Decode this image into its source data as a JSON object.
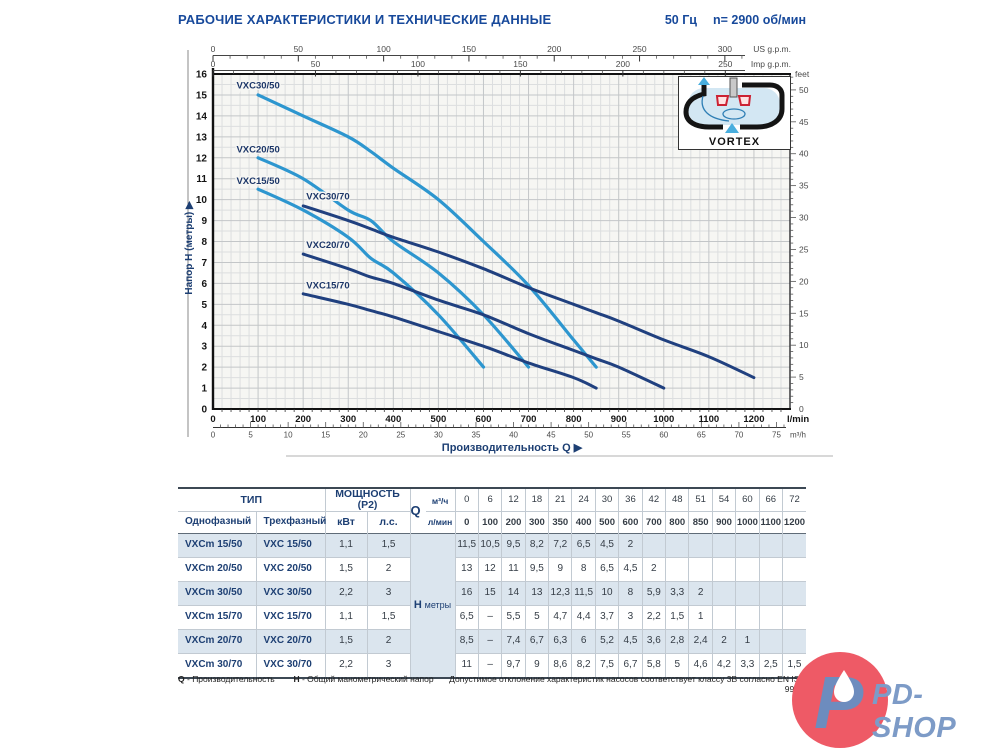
{
  "header": {
    "title": "РАБОЧИЕ ХАРАКТЕРИСТИКИ И ТЕХНИЧЕСКИЕ ДАННЫЕ",
    "freq": "50 Гц",
    "speed": "n= 2900 об/мин"
  },
  "chart": {
    "inset_label": "VORTEX",
    "colors": {
      "curve_light": "#2d96cf",
      "curve_dark": "#20407f",
      "grid_minor": "#dcdedf",
      "grid_major": "#c3c6c8",
      "plot_bg": "#f6f6f3",
      "label_navy": "#1c3668"
    }
  },
  "chart_data": {
    "type": "line",
    "x_axis": {
      "label": "Производительность Q  ▶",
      "primary_unit": "l/min",
      "secondary_unit": "m³/h",
      "lmin_ticks": [
        0,
        100,
        200,
        300,
        400,
        500,
        600,
        700,
        800,
        900,
        1000,
        1100,
        1200
      ],
      "m3h_ticks": [
        0,
        5,
        10,
        15,
        20,
        25,
        30,
        35,
        40,
        45,
        50,
        55,
        60,
        65,
        70,
        75
      ],
      "range_lmin": [
        0,
        1280
      ]
    },
    "y_axis": {
      "label": "Напор H (метры)  ▶",
      "m_ticks": [
        0,
        1,
        2,
        3,
        4,
        5,
        6,
        7,
        8,
        9,
        10,
        11,
        12,
        13,
        14,
        15,
        16
      ],
      "range_m": [
        0,
        16
      ]
    },
    "right_axis": {
      "unit": "feet",
      "ticks": [
        0,
        5,
        10,
        15,
        20,
        25,
        30,
        35,
        40,
        45,
        50
      ]
    },
    "top_axes": [
      {
        "unit": "US g.p.m.",
        "ticks": [
          0,
          50,
          100,
          150,
          200,
          250,
          300
        ],
        "lmin_per_unit": 3.785
      },
      {
        "unit": "Imp g.p.m.",
        "ticks": [
          0,
          50,
          100,
          150,
          200,
          250
        ],
        "lmin_per_unit": 4.546
      }
    ],
    "series": [
      {
        "name": "VXC15/50",
        "color": "light",
        "label_at": [
          52,
          10.75
        ],
        "points": [
          [
            100,
            10.5
          ],
          [
            200,
            9.5
          ],
          [
            300,
            8.2
          ],
          [
            350,
            7.2
          ],
          [
            400,
            6.5
          ],
          [
            500,
            4.5
          ],
          [
            600,
            2
          ]
        ]
      },
      {
        "name": "VXC20/50",
        "color": "light",
        "label_at": [
          52,
          12.25
        ],
        "points": [
          [
            100,
            12
          ],
          [
            200,
            11
          ],
          [
            300,
            9.5
          ],
          [
            350,
            9
          ],
          [
            400,
            8
          ],
          [
            500,
            6.5
          ],
          [
            600,
            4.5
          ],
          [
            700,
            2
          ]
        ]
      },
      {
        "name": "VXC30/50",
        "color": "light",
        "label_at": [
          52,
          15.3
        ],
        "points": [
          [
            100,
            15
          ],
          [
            200,
            14
          ],
          [
            300,
            13
          ],
          [
            350,
            12.3
          ],
          [
            400,
            11.5
          ],
          [
            500,
            10
          ],
          [
            600,
            8
          ],
          [
            700,
            5.9
          ],
          [
            800,
            3.3
          ],
          [
            850,
            2
          ]
        ]
      },
      {
        "name": "VXC15/70",
        "color": "dark",
        "label_at": [
          207,
          5.75
        ],
        "points": [
          [
            200,
            5.5
          ],
          [
            300,
            5
          ],
          [
            350,
            4.7
          ],
          [
            400,
            4.4
          ],
          [
            500,
            3.7
          ],
          [
            600,
            3
          ],
          [
            700,
            2.2
          ],
          [
            800,
            1.5
          ],
          [
            850,
            1
          ]
        ]
      },
      {
        "name": "VXC20/70",
        "color": "dark",
        "label_at": [
          207,
          7.7
        ],
        "points": [
          [
            200,
            7.4
          ],
          [
            300,
            6.7
          ],
          [
            350,
            6.3
          ],
          [
            400,
            6
          ],
          [
            500,
            5.2
          ],
          [
            600,
            4.5
          ],
          [
            700,
            3.6
          ],
          [
            800,
            2.8
          ],
          [
            850,
            2.4
          ],
          [
            900,
            2
          ],
          [
            1000,
            1
          ]
        ]
      },
      {
        "name": "VXC30/70",
        "color": "dark",
        "label_at": [
          207,
          10.0
        ],
        "points": [
          [
            200,
            9.7
          ],
          [
            300,
            9
          ],
          [
            350,
            8.6
          ],
          [
            400,
            8.2
          ],
          [
            500,
            7.5
          ],
          [
            600,
            6.7
          ],
          [
            700,
            5.8
          ],
          [
            800,
            5
          ],
          [
            850,
            4.6
          ],
          [
            900,
            4.2
          ],
          [
            1000,
            3.3
          ],
          [
            1100,
            2.5
          ],
          [
            1200,
            1.5
          ]
        ]
      }
    ]
  },
  "table": {
    "headers": {
      "type": "ТИП",
      "type_single": "Однофазный",
      "type_three": "Трехфазный",
      "power": "МОЩНОСТЬ (P2)",
      "kw": "кВт",
      "hp": "л.с.",
      "q": "Q",
      "m3h": "м³/ч",
      "lmin": "л/мин",
      "h_label": "H",
      "h_unit": "метры"
    },
    "flow_m3h": [
      "0",
      "6",
      "12",
      "18",
      "21",
      "24",
      "30",
      "36",
      "42",
      "48",
      "51",
      "54",
      "60",
      "66",
      "72"
    ],
    "flow_lmin": [
      "0",
      "100",
      "200",
      "300",
      "350",
      "400",
      "500",
      "600",
      "700",
      "800",
      "850",
      "900",
      "1000",
      "1100",
      "1200"
    ],
    "rows": [
      {
        "single": "VXCm 15/50",
        "three": "VXC 15/50",
        "kw": "1,1",
        "hp": "1,5",
        "h": [
          "11,5",
          "10,5",
          "9,5",
          "8,2",
          "7,2",
          "6,5",
          "4,5",
          "2",
          "",
          "",
          "",
          "",
          "",
          "",
          ""
        ]
      },
      {
        "single": "VXCm 20/50",
        "three": "VXC 20/50",
        "kw": "1,5",
        "hp": "2",
        "h": [
          "13",
          "12",
          "11",
          "9,5",
          "9",
          "8",
          "6,5",
          "4,5",
          "2",
          "",
          "",
          "",
          "",
          "",
          ""
        ]
      },
      {
        "single": "VXCm 30/50",
        "three": "VXC 30/50",
        "kw": "2,2",
        "hp": "3",
        "h": [
          "16",
          "15",
          "14",
          "13",
          "12,3",
          "11,5",
          "10",
          "8",
          "5,9",
          "3,3",
          "2",
          "",
          "",
          "",
          ""
        ]
      },
      {
        "single": "VXCm 15/70",
        "three": "VXC 15/70",
        "kw": "1,1",
        "hp": "1,5",
        "h": [
          "6,5",
          "–",
          "5,5",
          "5",
          "4,7",
          "4,4",
          "3,7",
          "3",
          "2,2",
          "1,5",
          "1",
          "",
          "",
          "",
          ""
        ]
      },
      {
        "single": "VXCm 20/70",
        "three": "VXC 20/70",
        "kw": "1,5",
        "hp": "2",
        "h": [
          "8,5",
          "–",
          "7,4",
          "6,7",
          "6,3",
          "6",
          "5,2",
          "4,5",
          "3,6",
          "2,8",
          "2,4",
          "2",
          "1",
          "",
          ""
        ]
      },
      {
        "single": "VXCm 30/70",
        "three": "VXC 30/70",
        "kw": "2,2",
        "hp": "3",
        "h": [
          "11",
          "–",
          "9,7",
          "9",
          "8,6",
          "8,2",
          "7,5",
          "6,7",
          "5,8",
          "5",
          "4,6",
          "4,2",
          "3,3",
          "2,5",
          "1,5"
        ]
      }
    ]
  },
  "footer": {
    "legend": [
      {
        "key": "Q",
        "text": "- Производительность"
      },
      {
        "key": "H",
        "text": "- Общий манометрический напор"
      }
    ],
    "note": "Допустимое отклонение характеристик насосов соответствует классу 3B согласно EN ISO 9906."
  },
  "watermark": {
    "text": "PD-SHOP",
    "circle_color": "#ee5a66",
    "text_color": "#7d9bc7"
  }
}
